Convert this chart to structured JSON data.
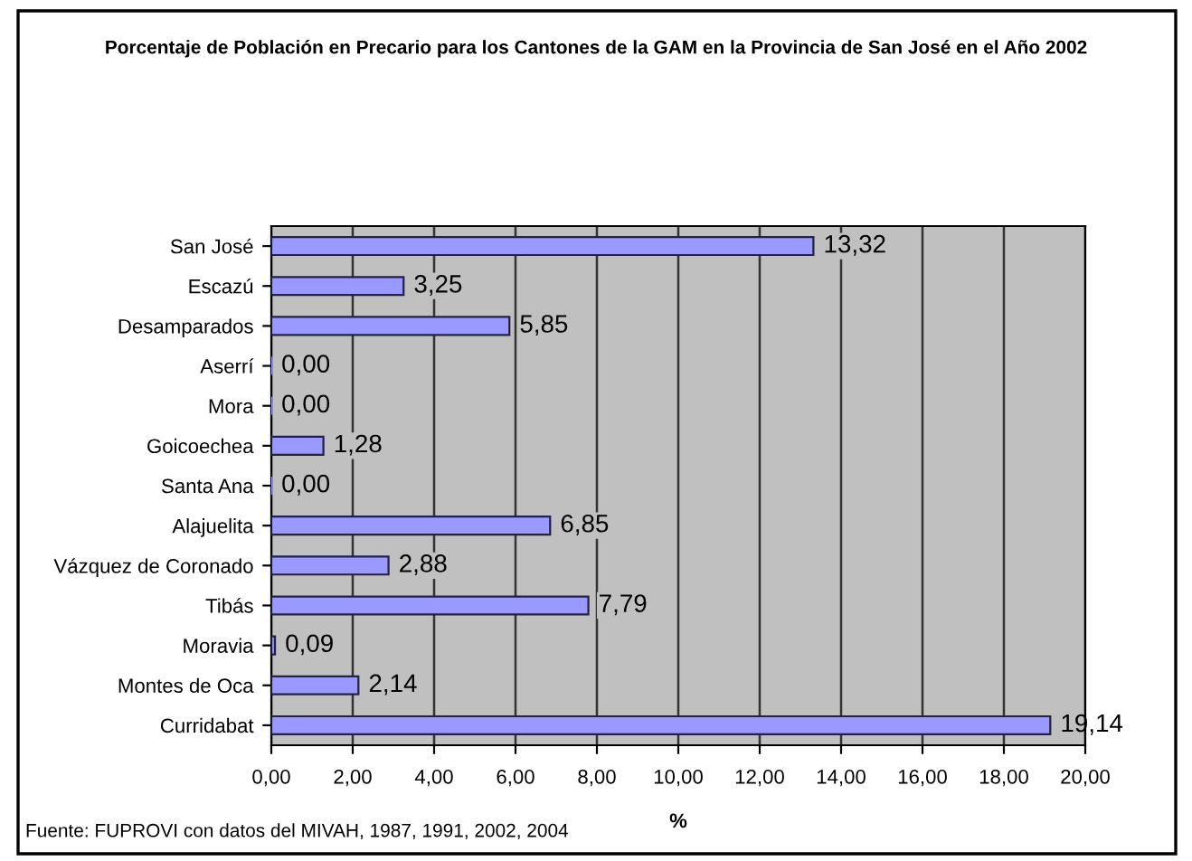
{
  "chart_data": {
    "type": "bar",
    "orientation": "horizontal",
    "title": "Porcentaje de Población en Precario para los Cantones de la GAM en la Provincia de San José en el Año 2002",
    "xlabel": "%",
    "annotations": [
      "Fuente: FUPROVI con datos del MIVAH, 1987, 1991, 2002, 2004"
    ],
    "categories": [
      "San José",
      "Escazú",
      "Desamparados",
      "Aserrí",
      "Mora",
      "Goicoechea",
      "Santa Ana",
      "Alajuelita",
      "Vázquez de Coronado",
      "Tibás",
      "Moravia",
      "Montes de Oca",
      "Curridabat"
    ],
    "values": [
      13.32,
      3.25,
      5.85,
      0.0,
      0.0,
      1.28,
      0.0,
      6.85,
      2.88,
      7.79,
      0.09,
      2.14,
      19.14
    ],
    "value_labels": [
      "13,32",
      "3,25",
      "5,85",
      "0,00",
      "0,00",
      "1,28",
      "0,00",
      "6,85",
      "2,88",
      "7,79",
      "0,09",
      "2,14",
      "19,14"
    ],
    "color": "#9999ff",
    "xlim": [
      0,
      20
    ],
    "xticks": [
      {
        "value": 0,
        "label": "0,00"
      },
      {
        "value": 2,
        "label": "2,00"
      },
      {
        "value": 4,
        "label": "4,00"
      },
      {
        "value": 6,
        "label": "6,00"
      },
      {
        "value": 8,
        "label": "8,00"
      },
      {
        "value": 10,
        "label": "10,00"
      },
      {
        "value": 12,
        "label": "12,00"
      },
      {
        "value": 14,
        "label": "14,00"
      },
      {
        "value": 16,
        "label": "16,00"
      },
      {
        "value": 18,
        "label": "18,00"
      },
      {
        "value": 20,
        "label": "20,00"
      }
    ],
    "grid": "x",
    "legend": false
  }
}
